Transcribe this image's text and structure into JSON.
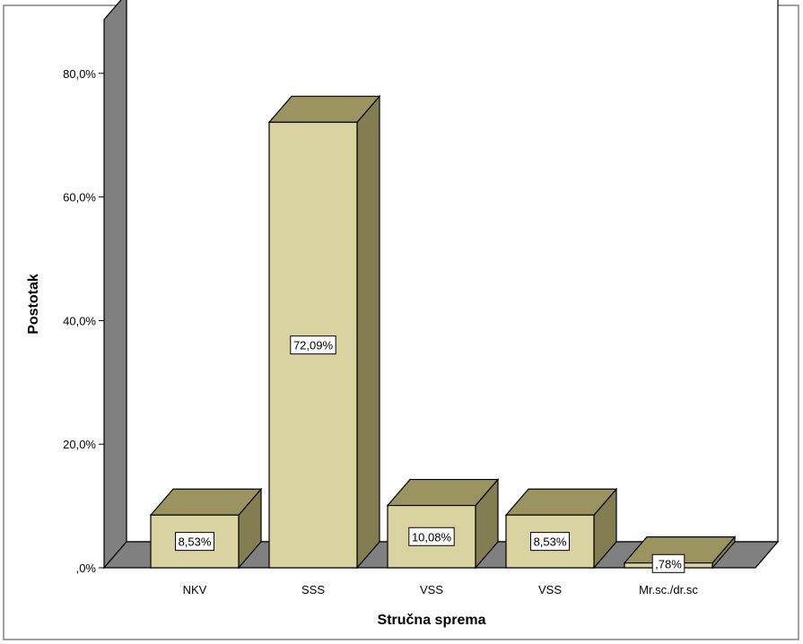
{
  "chart_data": {
    "type": "bar",
    "title": "",
    "xlabel": "Stručna sprema",
    "ylabel": "Postotak",
    "categories": [
      "NKV",
      "SSS",
      "VSS",
      "VSS",
      "Mr.sc./dr.sc"
    ],
    "values": [
      8.53,
      72.09,
      10.08,
      8.53,
      0.78
    ],
    "data_labels": [
      "8,53%",
      "72,09%",
      "10,08%",
      "8,53%",
      ",78%"
    ],
    "ylim": [
      0,
      80
    ],
    "yticks": [
      0,
      20,
      40,
      60,
      80
    ],
    "ytick_labels": [
      ",0%",
      "20,0%",
      "40,0%",
      "60,0%",
      "80,0%"
    ],
    "grid": false,
    "legend": "none",
    "style": "3d",
    "colors": {
      "bar_front": "#d8d3a0",
      "bar_top": "#9b9461",
      "bar_side": "#837d52",
      "wall": "#808080",
      "floor": "#808080",
      "outline": "#000000"
    }
  }
}
